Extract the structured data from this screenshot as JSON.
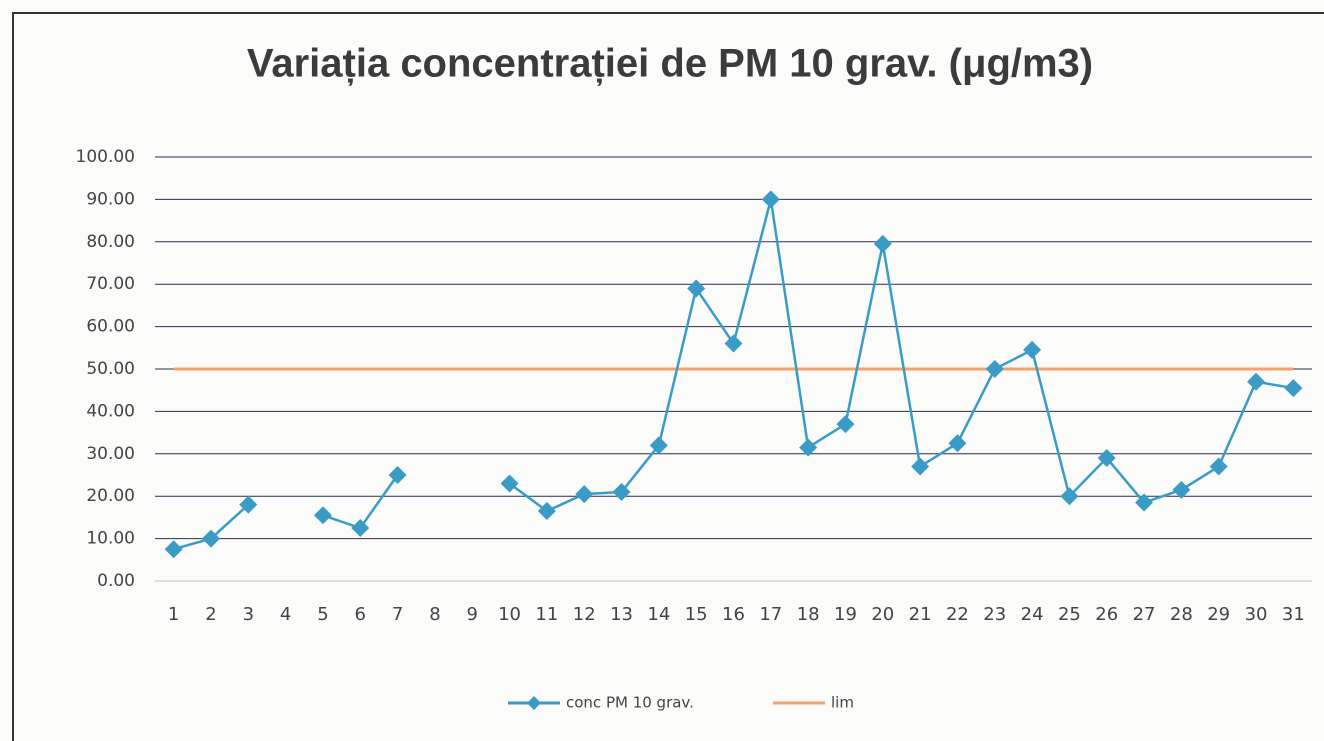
{
  "chart_data": {
    "type": "line",
    "title": "Variația concentrației de PM 10 grav. (μg/m3)",
    "categories": [
      "1",
      "2",
      "3",
      "4",
      "5",
      "6",
      "7",
      "8",
      "9",
      "10",
      "11",
      "12",
      "13",
      "14",
      "15",
      "16",
      "17",
      "18",
      "19",
      "20",
      "21",
      "22",
      "23",
      "24",
      "25",
      "26",
      "27",
      "28",
      "29",
      "30",
      "31"
    ],
    "series": [
      {
        "name": "conc PM 10 grav.",
        "color": "#3a9cc6",
        "marker": "diamond",
        "values": [
          7.5,
          10,
          18,
          null,
          15.5,
          12.5,
          25,
          null,
          null,
          23,
          16.5,
          20.5,
          21,
          32,
          69,
          56,
          90,
          31.5,
          37,
          79.5,
          27,
          32.5,
          50,
          54.5,
          20,
          29,
          18.5,
          21.5,
          27,
          47,
          45.5
        ]
      },
      {
        "name": "lim",
        "color": "#f4a070",
        "values": [
          50,
          50,
          50,
          50,
          50,
          50,
          50,
          50,
          50,
          50,
          50,
          50,
          50,
          50,
          50,
          50,
          50,
          50,
          50,
          50,
          50,
          50,
          50,
          50,
          50,
          50,
          50,
          50,
          50,
          50,
          50
        ]
      }
    ],
    "ylim": [
      0,
      100
    ],
    "yticks": [
      {
        "value": 0,
        "label": "0.00"
      },
      {
        "value": 10,
        "label": "10.00"
      },
      {
        "value": 20,
        "label": "20.00"
      },
      {
        "value": 30,
        "label": "30.00"
      },
      {
        "value": 40,
        "label": "40.00"
      },
      {
        "value": 50,
        "label": "50.00"
      },
      {
        "value": 60,
        "label": "60.00"
      },
      {
        "value": 70,
        "label": "70.00"
      },
      {
        "value": 80,
        "label": "80.00"
      },
      {
        "value": 90,
        "label": "90.00"
      },
      {
        "value": 100,
        "label": "100.00"
      }
    ],
    "grid": true,
    "legend": "bottom"
  }
}
